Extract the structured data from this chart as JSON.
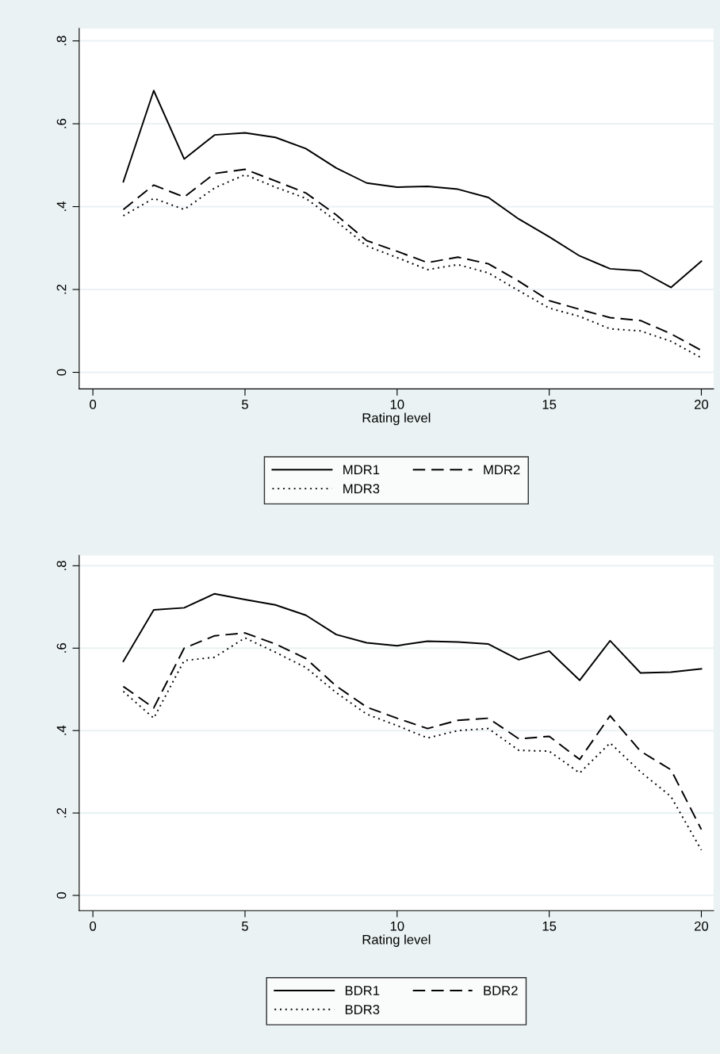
{
  "chart_data": [
    {
      "type": "line",
      "xlabel": "Rating level",
      "x": [
        1,
        2,
        3,
        4,
        5,
        6,
        7,
        8,
        9,
        10,
        11,
        12,
        13,
        14,
        15,
        16,
        17,
        18,
        19,
        20
      ],
      "xlim": [
        -0.45,
        20.4
      ],
      "xticks": [
        0,
        5,
        10,
        15,
        20
      ],
      "ylim": [
        -0.04,
        0.83
      ],
      "yticks": [
        0,
        {
          "value": 0.2,
          "label": ".2"
        },
        {
          "value": 0.4,
          "label": ".4"
        },
        {
          "value": 0.6,
          "label": ".6"
        },
        {
          "value": 0.8,
          "label": ".8"
        }
      ],
      "grid": "y",
      "legend": "bottom",
      "series": [
        {
          "name": "MDR1",
          "color": "#000000",
          "line_style": "solid",
          "values": [
            0.46,
            0.68,
            0.515,
            0.573,
            0.578,
            0.567,
            0.54,
            0.493,
            0.457,
            0.447,
            0.449,
            0.442,
            0.422,
            0.37,
            0.327,
            0.281,
            0.25,
            0.245,
            0.205,
            0.268
          ]
        },
        {
          "name": "MDR2",
          "color": "#000000",
          "line_style": "dashed",
          "values": [
            0.393,
            0.452,
            0.423,
            0.48,
            0.49,
            0.462,
            0.433,
            0.38,
            0.318,
            0.292,
            0.265,
            0.278,
            0.262,
            0.22,
            0.173,
            0.152,
            0.132,
            0.125,
            0.093,
            0.053
          ]
        },
        {
          "name": "MDR3",
          "color": "#000000",
          "line_style": "dotted",
          "values": [
            0.378,
            0.42,
            0.393,
            0.445,
            0.477,
            0.447,
            0.42,
            0.365,
            0.305,
            0.277,
            0.248,
            0.26,
            0.24,
            0.197,
            0.155,
            0.135,
            0.105,
            0.1,
            0.075,
            0.035
          ]
        }
      ]
    },
    {
      "type": "line",
      "xlabel": "Rating level",
      "x": [
        1,
        2,
        3,
        4,
        5,
        6,
        7,
        8,
        9,
        10,
        11,
        12,
        13,
        14,
        15,
        16,
        17,
        18,
        19,
        20
      ],
      "xlim": [
        -0.45,
        20.4
      ],
      "xticks": [
        0,
        5,
        10,
        15,
        20
      ],
      "ylim": [
        -0.037,
        0.825
      ],
      "yticks": [
        0,
        {
          "value": 0.2,
          "label": ".2"
        },
        {
          "value": 0.4,
          "label": ".4"
        },
        {
          "value": 0.6,
          "label": ".6"
        },
        {
          "value": 0.8,
          "label": ".8"
        }
      ],
      "grid": "y",
      "legend": "bottom",
      "series": [
        {
          "name": "BDR1",
          "color": "#000000",
          "line_style": "solid",
          "values": [
            0.568,
            0.693,
            0.698,
            0.732,
            0.718,
            0.705,
            0.68,
            0.633,
            0.613,
            0.606,
            0.617,
            0.615,
            0.61,
            0.572,
            0.593,
            0.522,
            0.618,
            0.54,
            0.542,
            0.55
          ]
        },
        {
          "name": "BDR2",
          "color": "#000000",
          "line_style": "dashed",
          "values": [
            0.507,
            0.455,
            0.6,
            0.63,
            0.637,
            0.61,
            0.575,
            0.508,
            0.457,
            0.43,
            0.405,
            0.425,
            0.43,
            0.38,
            0.386,
            0.33,
            0.436,
            0.35,
            0.305,
            0.16
          ]
        },
        {
          "name": "BDR3",
          "color": "#000000",
          "line_style": "dotted",
          "values": [
            0.495,
            0.43,
            0.57,
            0.578,
            0.625,
            0.59,
            0.553,
            0.492,
            0.44,
            0.412,
            0.382,
            0.4,
            0.405,
            0.352,
            0.35,
            0.297,
            0.37,
            0.3,
            0.24,
            0.11
          ]
        }
      ]
    }
  ]
}
